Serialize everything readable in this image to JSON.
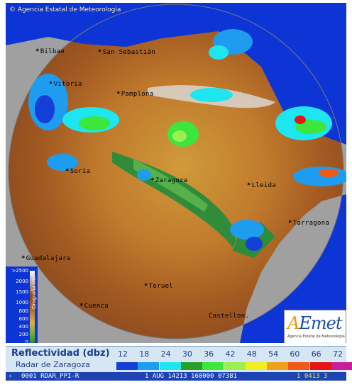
{
  "copyright": "© Agencia Estatal de Meteorología",
  "cities": [
    {
      "name": "Bilbao",
      "key": "bilbao"
    },
    {
      "name": "San Sebastián",
      "key": "san-sebastian"
    },
    {
      "name": "Vitoria",
      "key": "vitoria"
    },
    {
      "name": "Pamplona",
      "key": "pamplona"
    },
    {
      "name": "Soria",
      "key": "soria"
    },
    {
      "name": "Zaragoza",
      "key": "zaragoza"
    },
    {
      "name": "Lleida",
      "key": "lleida"
    },
    {
      "name": "Tarragona",
      "key": "tarragona"
    },
    {
      "name": "Guadalajara",
      "key": "guadalajara"
    },
    {
      "name": "Teruel",
      "key": "teruel"
    },
    {
      "name": "Cuenca",
      "key": "cuenca"
    },
    {
      "name": "Castellon",
      "key": "castellon"
    }
  ],
  "orography": {
    "title": "Orografía (m)",
    "ticks": [
      ">2500",
      "2000",
      "1500",
      "1000",
      "800",
      "600",
      "400",
      "200",
      "0"
    ]
  },
  "logo": {
    "word": "AEmet",
    "subtitle": "Agencia Estatal de Meteorología"
  },
  "legend": {
    "title": "Reflectividad (dbz)",
    "subtitle": "Radar de Zaragoza",
    "scale": [
      {
        "value": "12",
        "color": "#1540d8"
      },
      {
        "value": "18",
        "color": "#1e9cf0"
      },
      {
        "value": "24",
        "color": "#1ee6f0"
      },
      {
        "value": "30",
        "color": "#28a028"
      },
      {
        "value": "36",
        "color": "#3ce63c"
      },
      {
        "value": "42",
        "color": "#9bf050"
      },
      {
        "value": "48",
        "color": "#f0f01e"
      },
      {
        "value": "54",
        "color": "#f0a01e"
      },
      {
        "value": "60",
        "color": "#f05a14"
      },
      {
        "value": "66",
        "color": "#e61414"
      },
      {
        "value": "72",
        "color": "#c81e9b"
      }
    ]
  },
  "status": {
    "product": "0001 RDAR_PPI-R",
    "date": "1 AUG 14213 160000 07381",
    "extra": "1 0413 3"
  }
}
